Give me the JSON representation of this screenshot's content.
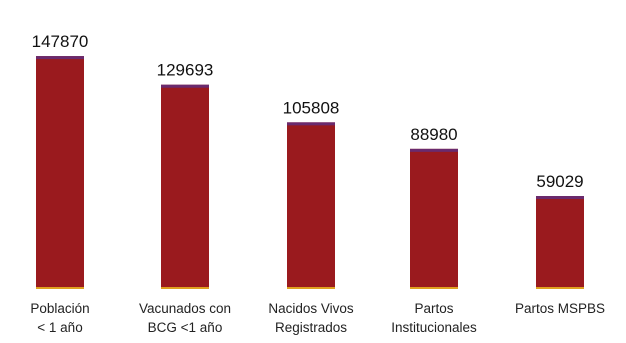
{
  "chart_data": {
    "type": "bar",
    "categories": [
      [
        "Población",
        "< 1 año"
      ],
      [
        "Vacunados con",
        "BCG <1 año"
      ],
      [
        "Nacidos Vivos",
        "Registrados"
      ],
      [
        "Partos",
        "Institucionales"
      ],
      [
        "Partos MSPBS"
      ]
    ],
    "values": [
      147870,
      129693,
      105808,
      88980,
      59029
    ],
    "data_labels": [
      "147870",
      "129693",
      "105808",
      "88980",
      "59029"
    ],
    "ylim": [
      0,
      160000
    ],
    "grid": false,
    "colors": {
      "bar": "#9a1a1e",
      "bar_top": "#6a2a6e",
      "bar_base": "#e0a020",
      "label": "#111111"
    }
  }
}
